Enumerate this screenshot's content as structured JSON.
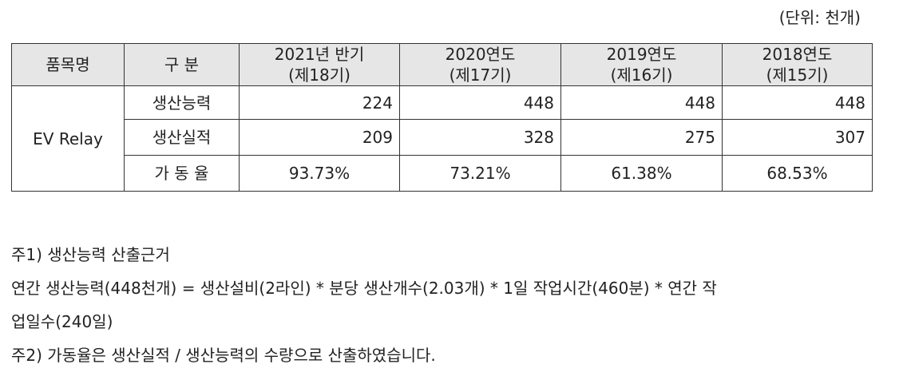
{
  "unit_label": "(단위: 천개)",
  "table": {
    "headers": {
      "item": "품목명",
      "category": "구 분",
      "periods": [
        {
          "line1": "2021년 반기",
          "line2": "(제18기)"
        },
        {
          "line1": "2020연도",
          "line2": "(제17기)"
        },
        {
          "line1": "2019연도",
          "line2": "(제16기)"
        },
        {
          "line1": "2018연도",
          "line2": "(제15기)"
        }
      ]
    },
    "product": "EV Relay",
    "rows": [
      {
        "label": "생산능력",
        "values": [
          "224",
          "448",
          "448",
          "448"
        ]
      },
      {
        "label": "생산실적",
        "values": [
          "209",
          "328",
          "275",
          "307"
        ]
      },
      {
        "label": "가 동 율",
        "values": [
          "93.73%",
          "73.21%",
          "61.38%",
          "68.53%"
        ]
      }
    ]
  },
  "notes": [
    "주1) 생산능력 산출근거",
    "연간 생산능력(448천개) = 생산설비(2라인) * 분당 생산개수(2.03개) * 1일 작업시간(460분) * 연간 작",
    "업일수(240일)",
    "주2) 가동율은 생산실적 / 생산능력의 수량으로 산출하였습니다."
  ]
}
